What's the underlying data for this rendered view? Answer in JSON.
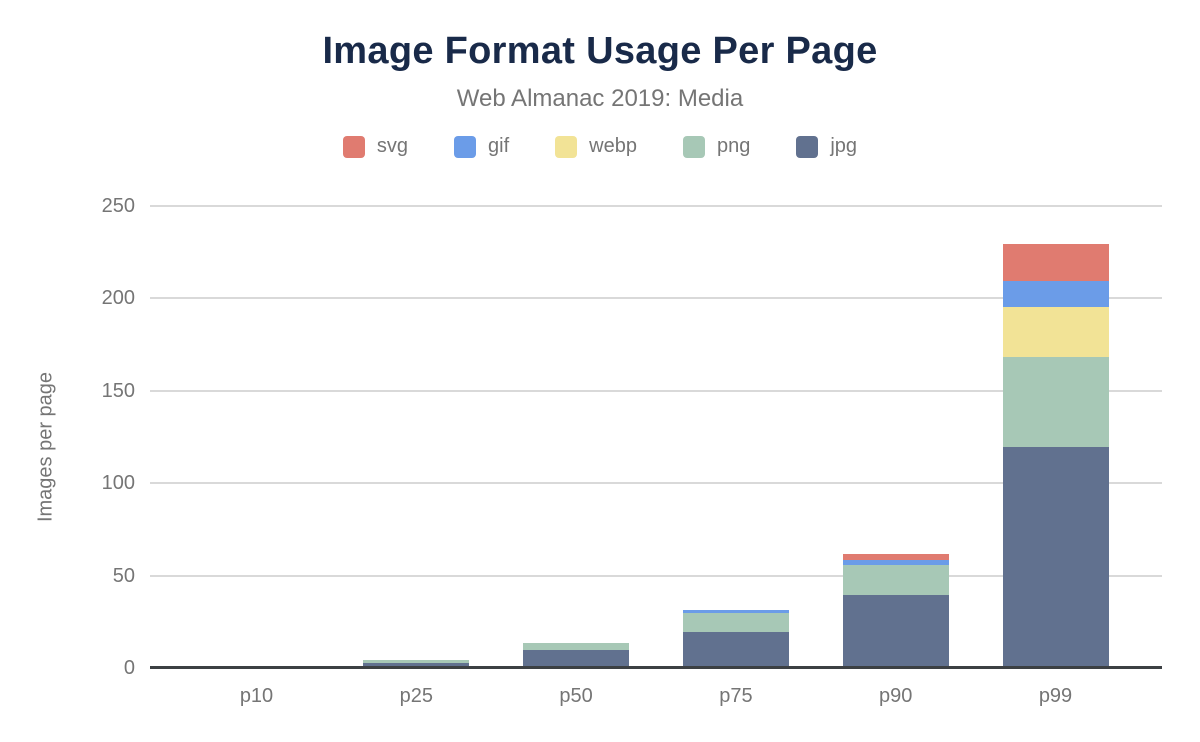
{
  "header": {
    "title": "Image Format Usage Per Page",
    "subtitle": "Web Almanac 2019: Media"
  },
  "chart_data": {
    "type": "bar",
    "stacked": true,
    "title": "Image Format Usage Per Page",
    "subtitle": "Web Almanac 2019: Media",
    "xlabel": "",
    "ylabel": "Images per page",
    "categories": [
      "p10",
      "p25",
      "p50",
      "p75",
      "p90",
      "p99"
    ],
    "series": [
      {
        "name": "svg",
        "color": "#e07b70",
        "values": [
          0,
          0,
          0,
          0,
          3,
          20
        ]
      },
      {
        "name": "gif",
        "color": "#6b9ce8",
        "values": [
          0,
          0,
          0,
          2,
          3,
          14
        ]
      },
      {
        "name": "webp",
        "color": "#f2e396",
        "values": [
          0,
          0,
          0,
          0,
          0,
          27
        ]
      },
      {
        "name": "png",
        "color": "#a7c8b6",
        "values": [
          0,
          2,
          4,
          10,
          16,
          49
        ]
      },
      {
        "name": "jpg",
        "color": "#61718f",
        "values": [
          0,
          2,
          9,
          19,
          39,
          119
        ]
      }
    ],
    "stack_order_bottom_to_top": [
      "jpg",
      "png",
      "webp",
      "gif",
      "svg"
    ],
    "ylim": [
      0,
      250
    ],
    "yticks": [
      0,
      50,
      100,
      150,
      200,
      250
    ],
    "grid": true,
    "legend_position": "top"
  },
  "colors": {
    "title_text": "#192a49",
    "muted_text": "#757575",
    "gridline": "#d9d9d9",
    "axis_line": "#3c4043",
    "background": "#ffffff"
  }
}
